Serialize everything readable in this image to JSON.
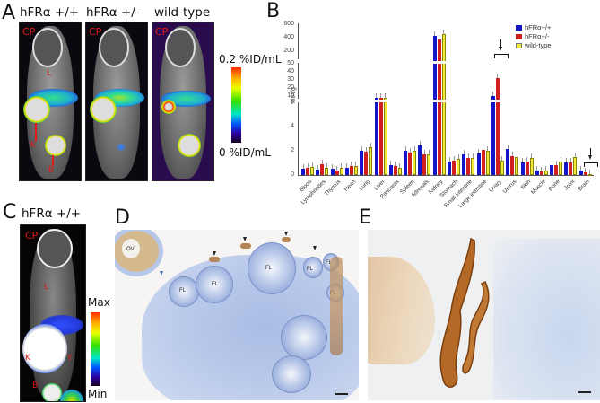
{
  "figure": {
    "panels": {
      "A": {
        "label": "A",
        "columns": [
          "hFRα +/+",
          "hFRα +/-",
          "wild-type"
        ],
        "annotations": [
          "CP",
          "L",
          "K",
          "B"
        ],
        "colorbar": {
          "max_label": "0.2 %ID/mL",
          "min_label": "0 %ID/mL"
        }
      },
      "B": {
        "label": "B"
      },
      "C": {
        "label": "C",
        "title": "hFRα +/+",
        "annotations": [
          "CP",
          "L",
          "K",
          "B",
          "T"
        ],
        "colorbar": {
          "max_label": "Max",
          "min_label": "Min"
        }
      },
      "D": {
        "label": "D",
        "annotations": [
          "OV",
          "FL",
          "FL",
          "FL",
          "FL",
          "FL",
          "FL"
        ]
      },
      "E": {
        "label": "E"
      }
    }
  },
  "chart_data": {
    "type": "bar",
    "title": "",
    "xlabel": "",
    "ylabel": "%IA/g",
    "axis_segments": [
      {
        "range": [
          0,
          6
        ],
        "ticks": [
          "0",
          "2",
          "4",
          "6"
        ]
      },
      {
        "range": [
          10,
          50
        ],
        "ticks": [
          "10",
          "20",
          "30",
          "40",
          "50"
        ]
      },
      {
        "range": [
          200,
          600
        ],
        "ticks": [
          "200",
          "400",
          "600"
        ]
      }
    ],
    "ylim": [
      0,
      600
    ],
    "legend_position": "top-right",
    "grid": false,
    "categories": [
      "Blood",
      "Lymphnodes",
      "Thymus",
      "Heart",
      "Lung",
      "Liver",
      "Pancreas",
      "Spleen",
      "Adrenals",
      "Kidney",
      "Stomach",
      "Small intestine",
      "Large intestine",
      "Ovary",
      "Uterus",
      "Skin",
      "Muscle",
      "Bone",
      "Joint",
      "Brain"
    ],
    "series": [
      {
        "name": "hFRα+/+",
        "color": "#1414c8",
        "values": [
          0.5,
          0.45,
          0.5,
          0.55,
          2.0,
          8.5,
          0.8,
          2.0,
          2.4,
          460,
          1.1,
          1.7,
          1.75,
          12,
          2.1,
          1.0,
          0.35,
          0.8,
          1.0,
          0.4
        ]
      },
      {
        "name": "hFRα+/-",
        "color": "#d11f1f",
        "values": [
          0.6,
          0.85,
          0.35,
          0.7,
          1.9,
          8.0,
          0.75,
          1.85,
          1.65,
          420,
          1.2,
          1.4,
          2.05,
          33,
          1.55,
          1.1,
          0.3,
          0.8,
          1.0,
          0.25
        ]
      },
      {
        "name": "wild-type",
        "color": "#f2ea3a",
        "values": [
          0.65,
          0.55,
          0.55,
          0.7,
          2.3,
          9.5,
          0.55,
          2.0,
          1.7,
          480,
          1.3,
          1.4,
          1.95,
          1.2,
          1.5,
          1.4,
          0.35,
          1.1,
          1.5,
          0.05
        ]
      }
    ],
    "annotations": [
      {
        "type": "arrow-bracket",
        "category": "Ovary"
      },
      {
        "type": "arrow-bracket",
        "category": "Brain"
      },
      {
        "type": "asterisks",
        "category": "Liver"
      }
    ]
  }
}
